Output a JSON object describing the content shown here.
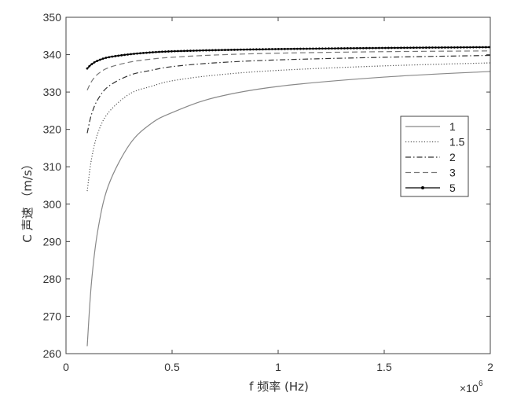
{
  "chart_data": {
    "type": "line",
    "title": "",
    "xlabel": "f 频率 (Hz)",
    "ylabel": "C 声速 （m/s）",
    "x_exponent_label": "×10",
    "x_exponent_power": "6",
    "xlim": [
      0,
      2
    ],
    "ylim": [
      260,
      350
    ],
    "xticks": [
      "0",
      "0.5",
      "1",
      "1.5",
      "2"
    ],
    "yticks": [
      "260",
      "270",
      "280",
      "290",
      "300",
      "310",
      "320",
      "330",
      "340",
      "350"
    ],
    "legend_position": "right",
    "grid": false,
    "series": [
      {
        "name": "1",
        "style": "solid",
        "color": "#888888",
        "x": [
          0.1,
          0.12,
          0.15,
          0.2,
          0.3,
          0.4,
          0.5,
          0.7,
          1.0,
          1.5,
          2.0
        ],
        "y": [
          262,
          279,
          293,
          305,
          316,
          321.5,
          324.5,
          328.5,
          331.5,
          334,
          335.5
        ]
      },
      {
        "name": "1.5",
        "style": "dotted",
        "color": "#555555",
        "x": [
          0.1,
          0.12,
          0.15,
          0.2,
          0.3,
          0.4,
          0.5,
          0.7,
          1.0,
          1.5,
          2.0
        ],
        "y": [
          303.5,
          312,
          319,
          324.5,
          329.5,
          331.5,
          333,
          334.5,
          335.8,
          337,
          337.8
        ]
      },
      {
        "name": "2",
        "style": "dashdot",
        "color": "#333333",
        "x": [
          0.1,
          0.12,
          0.15,
          0.2,
          0.3,
          0.4,
          0.5,
          0.7,
          1.0,
          1.5,
          2.0
        ],
        "y": [
          319,
          324,
          328,
          331.5,
          334.5,
          335.8,
          336.8,
          337.8,
          338.6,
          339.3,
          339.8
        ]
      },
      {
        "name": "3",
        "style": "dashed",
        "color": "#777777",
        "x": [
          0.1,
          0.12,
          0.15,
          0.2,
          0.3,
          0.4,
          0.5,
          0.7,
          1.0,
          1.5,
          2.0
        ],
        "y": [
          330.5,
          332.8,
          334.8,
          336.5,
          338,
          338.8,
          339.3,
          339.9,
          340.4,
          340.8,
          341
        ]
      },
      {
        "name": "5",
        "style": "solid-marker",
        "color": "#000000",
        "x": [
          0.1,
          0.12,
          0.15,
          0.2,
          0.3,
          0.4,
          0.5,
          0.7,
          1.0,
          1.5,
          2.0
        ],
        "y": [
          336.3,
          337.4,
          338.4,
          339.3,
          340.1,
          340.6,
          340.9,
          341.2,
          341.5,
          341.8,
          342
        ]
      }
    ]
  }
}
